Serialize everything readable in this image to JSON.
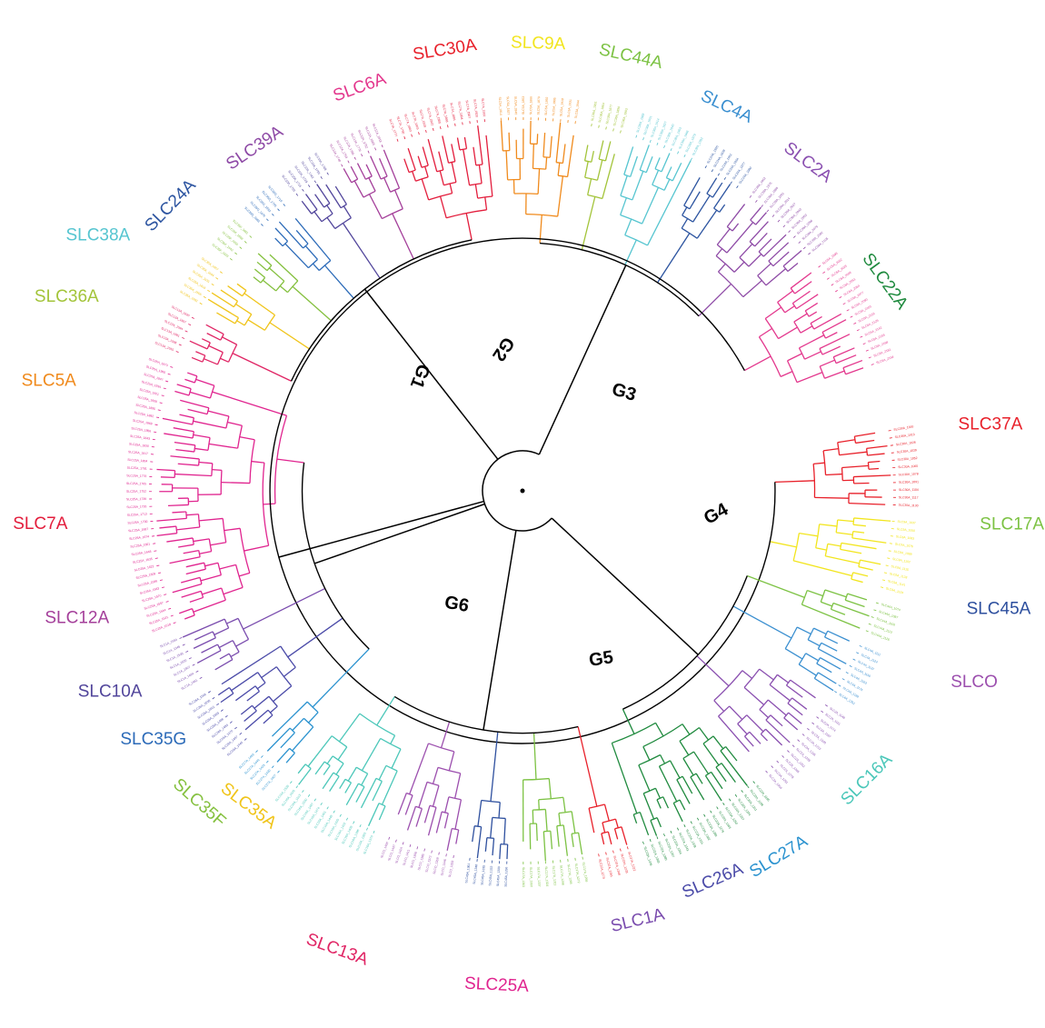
{
  "figure": {
    "kind": "circular phylogenetic tree",
    "colors": {
      "background": "#ffffff",
      "backbone": "#000000"
    }
  },
  "groups": [
    {
      "id": "G1",
      "label": "G1"
    },
    {
      "id": "G2",
      "label": "G2"
    },
    {
      "id": "G3",
      "label": "G3"
    },
    {
      "id": "G4",
      "label": "G4"
    },
    {
      "id": "G5",
      "label": "G5"
    },
    {
      "id": "G6",
      "label": "G6"
    }
  ],
  "families": [
    {
      "label": "SLC30A",
      "color": "#e8202a",
      "group": "G2",
      "leaves": 11
    },
    {
      "label": "SLC9A",
      "color": "#f2e51e",
      "group": "G2",
      "leaves": 10
    },
    {
      "label": "SLC44A",
      "color": "#7cc243",
      "group": "G3",
      "leaves": 5
    },
    {
      "label": "SLC4A",
      "color": "#3a8fd0",
      "group": "G3",
      "leaves": 8
    },
    {
      "label": "SLC2A",
      "color": "#8a4fb0",
      "group": "G3",
      "leaves": 13
    },
    {
      "label": "SLC22A",
      "color": "#1f8a3e",
      "group": "G3",
      "leaves": 18
    },
    {
      "label": "SLC37A",
      "color": "#e8202a",
      "group": "G4",
      "leaves": 5
    },
    {
      "label": "SLC17A",
      "color": "#7cc243",
      "group": "G4",
      "leaves": 9
    },
    {
      "label": "SLC45A",
      "color": "#2d4f9e",
      "group": "G4",
      "leaves": 6
    },
    {
      "label": "SLCO",
      "color": "#9c4fae",
      "group": "G4",
      "leaves": 10
    },
    {
      "label": "SLC16A",
      "color": "#4bc7b9",
      "group": "G4",
      "leaves": 14
    },
    {
      "label": "SLC27A",
      "color": "#2a92cf",
      "group": "G5",
      "leaves": 5
    },
    {
      "label": "SLC26A",
      "color": "#4a4aa8",
      "group": "G5",
      "leaves": 9
    },
    {
      "label": "SLC1A",
      "color": "#7a4cae",
      "group": "G5",
      "leaves": 7
    },
    {
      "label": "SLC25A",
      "color": "#e0248f",
      "group": "G5",
      "leaves": 36
    },
    {
      "label": "SLC13A",
      "color": "#e02464",
      "group": "G6",
      "leaves": 6
    },
    {
      "label": "SLC35A",
      "color": "#f0c419",
      "group": "G6",
      "leaves": 6
    },
    {
      "label": "SLC35F",
      "color": "#84c03e",
      "group": "G6",
      "leaves": 5
    },
    {
      "label": "SLC35G",
      "color": "#2b6ab8",
      "group": "G6",
      "leaves": 5
    },
    {
      "label": "SLC10A",
      "color": "#51459b",
      "group": "G6",
      "leaves": 6
    },
    {
      "label": "SLC12A",
      "color": "#a43f9a",
      "group": "G6",
      "leaves": 7
    },
    {
      "label": "SLC7A",
      "color": "#e31d3c",
      "group": "G6",
      "leaves": 13
    },
    {
      "label": "SLC5A",
      "color": "#f08a1c",
      "group": "G1",
      "leaves": 11
    },
    {
      "label": "SLC36A",
      "color": "#a3c43a",
      "group": "G1",
      "leaves": 5
    },
    {
      "label": "SLC38A",
      "color": "#56c5d0",
      "group": "G1",
      "leaves": 9
    },
    {
      "label": "SLC24A",
      "color": "#2c54a0",
      "group": "G1",
      "leaves": 6
    },
    {
      "label": "SLC39A",
      "color": "#8e4aa6",
      "group": "G1",
      "leaves": 12
    },
    {
      "label": "SLC6A",
      "color": "#e3378d",
      "group": "G2",
      "leaves": 16
    }
  ]
}
